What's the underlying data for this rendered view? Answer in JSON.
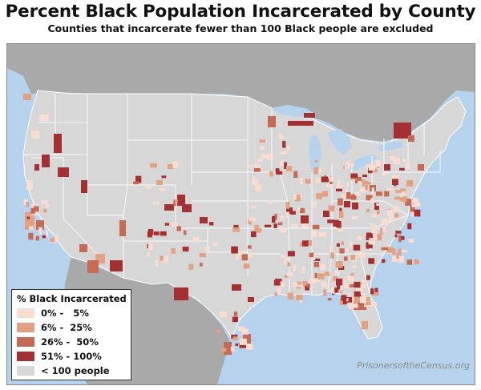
{
  "title": "Percent Black Population Incarcerated by County",
  "subtitle": "Counties that incarcerate fewer than 100 Black people are excluded",
  "credit": "PrisonersoftheCensus.org",
  "colors": {
    "ocean": "#b7d2ec",
    "foreign_land": "#a9a9a9",
    "us_land": "#d7d7d7",
    "state_border": "#f2f2f2",
    "lake": "#b7d2ec"
  },
  "legend": {
    "title": "% Black Incarcerated",
    "items": [
      {
        "label": "0% -   5%",
        "color": "#f9ddd2"
      },
      {
        "label": "6% -  25%",
        "color": "#e3a183"
      },
      {
        "label": "26% -  50%",
        "color": "#c56a55"
      },
      {
        "label": "51% - 100%",
        "color": "#a43033"
      },
      {
        "label": "< 100 people",
        "color": "#d7d7d7"
      }
    ]
  }
}
